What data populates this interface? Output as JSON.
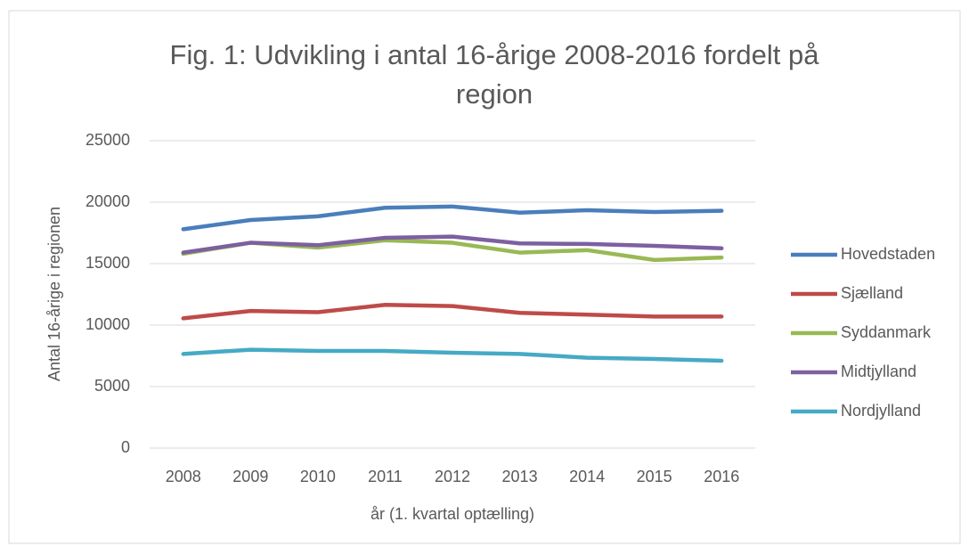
{
  "chart_data": {
    "type": "line",
    "title": "Fig. 1: Udvikling i antal 16-årige 2008-2016 fordelt på region",
    "x_label": "år (1. kvartal optælling)",
    "y_label": "Antal 16-årige i regionen",
    "categories": [
      "2008",
      "2009",
      "2010",
      "2011",
      "2012",
      "2013",
      "2014",
      "2015",
      "2016"
    ],
    "series": [
      {
        "name": "Hovedstaden",
        "color": "#4a7ebb",
        "values": [
          17800,
          18550,
          18850,
          19550,
          19650,
          19150,
          19350,
          19200,
          19300
        ]
      },
      {
        "name": "Sjælland",
        "color": "#be4b48",
        "values": [
          10550,
          11150,
          11050,
          11650,
          11550,
          11000,
          10850,
          10700,
          10700
        ]
      },
      {
        "name": "Syddanmark",
        "color": "#98b954",
        "values": [
          15800,
          16700,
          16300,
          16900,
          16700,
          15900,
          16100,
          15300,
          15500
        ]
      },
      {
        "name": "Midtjylland",
        "color": "#7d60a0",
        "values": [
          15900,
          16700,
          16500,
          17100,
          17200,
          16650,
          16600,
          16450,
          16250
        ]
      },
      {
        "name": "Nordjylland",
        "color": "#46aac5",
        "values": [
          7650,
          8000,
          7900,
          7900,
          7750,
          7650,
          7350,
          7250,
          7100
        ]
      }
    ],
    "ylim": [
      0,
      25000
    ],
    "yticks": [
      0,
      5000,
      10000,
      15000,
      20000,
      25000
    ],
    "grid": true,
    "legend": "right"
  }
}
